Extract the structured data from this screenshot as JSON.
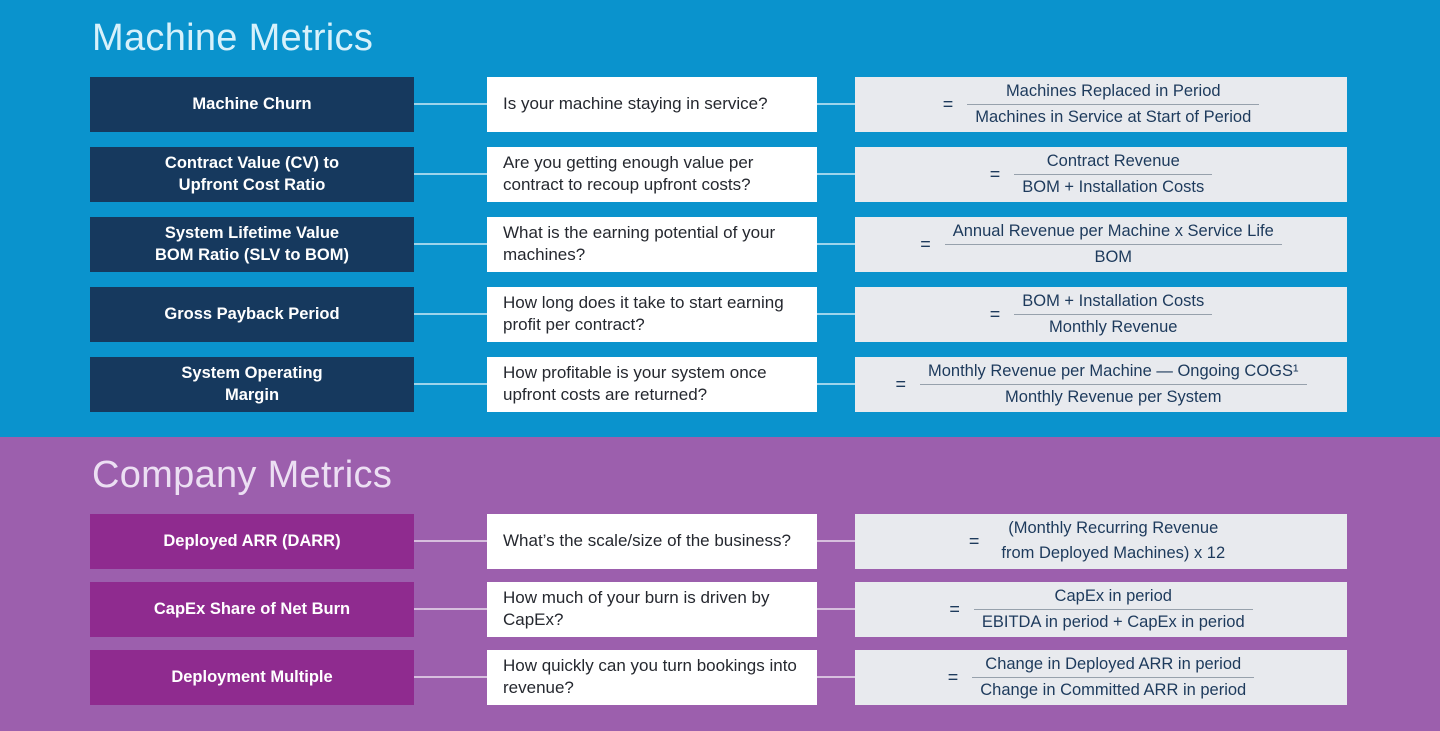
{
  "symbols": {
    "equals": "="
  },
  "colors": {
    "machine_background": "#0a93cd",
    "machine_metric_box": "#16395e",
    "machine_title": "#d7f1fb",
    "company_background": "#9c5fad",
    "company_metric_box": "#8f2b8f",
    "company_title": "#ecdff3",
    "formula_box_background": "#e8eaee",
    "formula_text": "#1d3a5c",
    "question_box_background": "#ffffff"
  },
  "sections": [
    {
      "title": "Machine Metrics",
      "rows": [
        {
          "metric": "Machine Churn",
          "question": "Is your machine staying in service?",
          "formula": {
            "top": "Machines Replaced in Period",
            "bottom": "Machines in Service at Start of Period",
            "bar": true
          }
        },
        {
          "metric": "Contract Value (CV) to\nUpfront Cost Ratio",
          "question": "Are you getting enough value per contract to recoup upfront costs?",
          "formula": {
            "top": "Contract Revenue",
            "bottom": "BOM + Installation Costs",
            "bar": true
          }
        },
        {
          "metric": "System Lifetime Value\nBOM Ratio (SLV to BOM)",
          "question": "What is the earning potential of your machines?",
          "formula": {
            "top": "Annual Revenue per Machine x Service Life",
            "bottom": "BOM",
            "bar": true
          }
        },
        {
          "metric": "Gross Payback Period",
          "question": "How long does it take to start earning profit per contract?",
          "formula": {
            "top": "BOM + Installation Costs",
            "bottom": "Monthly Revenue",
            "bar": true
          }
        },
        {
          "metric": "System Operating\nMargin",
          "question": "How profitable is your system once upfront costs are returned?",
          "formula": {
            "top": "Monthly Revenue per Machine — Ongoing COGS¹",
            "bottom": "Monthly Revenue per System",
            "bar": true
          }
        }
      ]
    },
    {
      "title": "Company Metrics",
      "rows": [
        {
          "metric": "Deployed ARR (DARR)",
          "question": "What’s the scale/size of the business?",
          "formula": {
            "top": "(Monthly Recurring Revenue",
            "bottom": "from Deployed Machines) x 12",
            "bar": false
          }
        },
        {
          "metric": "CapEx Share of Net Burn",
          "question": "How much of your burn is driven by CapEx?",
          "formula": {
            "top": "CapEx in period",
            "bottom": "EBITDA in period + CapEx in period",
            "bar": true
          }
        },
        {
          "metric": "Deployment Multiple",
          "question": "How quickly can you turn bookings into revenue?",
          "formula": {
            "top": "Change in Deployed ARR in period",
            "bottom": "Change in Committed ARR in period",
            "bar": true
          }
        }
      ]
    }
  ]
}
